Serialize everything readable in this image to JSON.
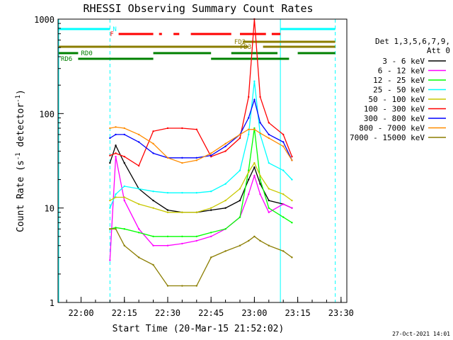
{
  "chart_data": {
    "type": "line",
    "title": "RHESSI Observing Summary Count Rates",
    "xlabel": "Start Time (20-Mar-15 21:52:02)",
    "ylabel": "Count Rate (s⁻¹ detector⁻¹)",
    "ylabel_main": "Count Rate (s",
    "ylabel_sup1": "-1",
    "ylabel_mid": " detector",
    "ylabel_sup2": "-1",
    "ylabel_end": ")",
    "y_scale": "log",
    "ylim": [
      1,
      1000
    ],
    "xlim_minutes": [
      "21:52:02",
      "23:32:00"
    ],
    "x_ticks": [
      "22:00",
      "22:15",
      "22:30",
      "22:45",
      "23:00",
      "23:15",
      "23:30"
    ],
    "y_ticks": [
      "1",
      "10",
      "100",
      "1000"
    ],
    "legend_header": [
      "Det 1,3,5,6,7,9,",
      "Att 0"
    ],
    "timestamp": "27-Oct-2021 14:01",
    "series": [
      {
        "name": "3 - 6 keV",
        "color": "#000000",
        "x": [
          "22:10",
          "22:12",
          "22:15",
          "22:20",
          "22:25",
          "22:30",
          "22:35",
          "22:40",
          "22:45",
          "22:50",
          "22:55",
          "22:58",
          "23:00",
          "23:02",
          "23:05",
          "23:10",
          "23:13"
        ],
        "values": [
          30,
          46,
          30,
          16,
          12,
          9.5,
          9,
          9,
          9.5,
          10,
          12,
          20,
          27,
          18,
          12,
          11,
          10
        ]
      },
      {
        "name": "6 - 12 keV",
        "color": "#ff00ff",
        "x": [
          "22:10",
          "22:12",
          "22:15",
          "22:20",
          "22:25",
          "22:30",
          "22:35",
          "22:40",
          "22:45",
          "22:50",
          "22:55",
          "22:58",
          "23:00",
          "23:02",
          "23:05",
          "23:10",
          "23:13"
        ],
        "values": [
          2.8,
          35,
          12,
          6,
          4,
          4,
          4.2,
          4.5,
          5,
          6,
          8,
          14,
          22,
          14,
          9,
          11,
          10
        ]
      },
      {
        "name": "12 - 25 keV",
        "color": "#00ff00",
        "x": [
          "22:10",
          "22:12",
          "22:15",
          "22:20",
          "22:25",
          "22:30",
          "22:35",
          "22:40",
          "22:45",
          "22:50",
          "22:55",
          "22:58",
          "23:00",
          "23:02",
          "23:05",
          "23:10",
          "23:13"
        ],
        "values": [
          6,
          6.2,
          6,
          5.5,
          5,
          5,
          5,
          5,
          5.5,
          6,
          8,
          25,
          70,
          20,
          10,
          8,
          7
        ]
      },
      {
        "name": "25 - 50 keV",
        "color": "#00ffff",
        "x": [
          "22:10",
          "22:12",
          "22:15",
          "22:20",
          "22:25",
          "22:30",
          "22:35",
          "22:40",
          "22:45",
          "22:50",
          "22:55",
          "22:58",
          "23:00",
          "23:02",
          "23:05",
          "23:10",
          "23:13"
        ],
        "values": [
          10,
          14,
          17,
          16,
          15,
          14.5,
          14.5,
          14.5,
          15,
          18,
          25,
          60,
          220,
          60,
          30,
          25,
          20
        ]
      },
      {
        "name": "50 - 100 keV",
        "color": "#c8c800",
        "x": [
          "22:10",
          "22:12",
          "22:15",
          "22:20",
          "22:25",
          "22:30",
          "22:35",
          "22:40",
          "22:45",
          "22:50",
          "22:55",
          "22:58",
          "23:00",
          "23:02",
          "23:05",
          "23:10",
          "23:13"
        ],
        "values": [
          12,
          13,
          13,
          11,
          10,
          9,
          9,
          9,
          10,
          12,
          16,
          24,
          30,
          22,
          16,
          14,
          12
        ]
      },
      {
        "name": "100 - 300 keV",
        "color": "#ff0000",
        "x": [
          "22:10",
          "22:12",
          "22:15",
          "22:20",
          "22:25",
          "22:30",
          "22:35",
          "22:40",
          "22:45",
          "22:50",
          "22:55",
          "22:58",
          "23:00",
          "23:02",
          "23:05",
          "23:10",
          "23:13"
        ],
        "values": [
          36,
          38,
          35,
          28,
          65,
          70,
          70,
          68,
          35,
          40,
          55,
          150,
          1000,
          150,
          80,
          60,
          35
        ]
      },
      {
        "name": "300 - 800 keV",
        "color": "#0000ff",
        "x": [
          "22:10",
          "22:12",
          "22:15",
          "22:20",
          "22:25",
          "22:30",
          "22:35",
          "22:40",
          "22:45",
          "22:50",
          "22:55",
          "22:58",
          "23:00",
          "23:02",
          "23:05",
          "23:10",
          "23:13"
        ],
        "values": [
          55,
          60,
          60,
          50,
          38,
          34,
          34,
          34,
          36,
          45,
          60,
          90,
          140,
          80,
          60,
          50,
          32
        ]
      },
      {
        "name": "800 - 7000 keV",
        "color": "#ff8c00",
        "x": [
          "22:10",
          "22:12",
          "22:15",
          "22:20",
          "22:25",
          "22:30",
          "22:35",
          "22:40",
          "22:45",
          "22:50",
          "22:55",
          "22:58",
          "23:00",
          "23:02",
          "23:05",
          "23:10",
          "23:13"
        ],
        "values": [
          70,
          72,
          70,
          60,
          48,
          34,
          30,
          32,
          38,
          48,
          60,
          68,
          68,
          62,
          55,
          45,
          32
        ]
      },
      {
        "name": "7000 - 15000 keV",
        "color": "#8b7d00",
        "x": [
          "22:10",
          "22:12",
          "22:15",
          "22:20",
          "22:25",
          "22:30",
          "22:35",
          "22:40",
          "22:45",
          "22:50",
          "22:55",
          "22:58",
          "23:00",
          "23:02",
          "23:05",
          "23:10",
          "23:13"
        ],
        "values": [
          6,
          6,
          4,
          3,
          2.5,
          1.5,
          1.5,
          1.5,
          3,
          3.5,
          4,
          4.5,
          5,
          4.5,
          4,
          3.5,
          3
        ]
      }
    ],
    "annotations": {
      "N": {
        "label": "N",
        "color": "#00ffff",
        "segments": [
          [
            "21:52",
            "22:10"
          ],
          [
            "23:09",
            "23:28"
          ]
        ]
      },
      "F": {
        "label": "F",
        "color": "#ff0000",
        "segments": [
          [
            "22:13",
            "22:25"
          ],
          [
            "22:27",
            "22:28"
          ],
          [
            "22:32",
            "22:34"
          ],
          [
            "22:38",
            "22:52"
          ],
          [
            "22:55",
            "23:04"
          ],
          [
            "23:06",
            "23:09"
          ]
        ]
      },
      "FD2": {
        "label": "FD2",
        "color": "#8b7d00",
        "segments": [
          [
            "22:56",
            "23:28"
          ]
        ]
      },
      "FD3": {
        "label": "FD3",
        "color": "#8b7d00",
        "segments": [
          [
            "21:52",
            "22:58"
          ],
          [
            "23:03",
            "23:28"
          ]
        ]
      },
      "RD0": {
        "label": "RD0",
        "color": "#008000",
        "segments": [
          [
            "21:52",
            "21:59"
          ],
          [
            "22:25",
            "22:45"
          ],
          [
            "22:52",
            "23:08"
          ],
          [
            "23:15",
            "23:28"
          ]
        ]
      },
      "RD6": {
        "label": "RD6",
        "color": "#008000",
        "segments": [
          [
            "21:59",
            "22:25"
          ],
          [
            "22:45",
            "23:12"
          ]
        ]
      }
    },
    "vertical_markers": [
      {
        "time": "21:52",
        "color": "#00ffff",
        "style": "solid"
      },
      {
        "time": "22:10",
        "color": "#00ffff",
        "style": "dashed"
      },
      {
        "time": "23:09",
        "color": "#00ffff",
        "style": "solid"
      },
      {
        "time": "23:28",
        "color": "#00ffff",
        "style": "dashed"
      }
    ]
  }
}
